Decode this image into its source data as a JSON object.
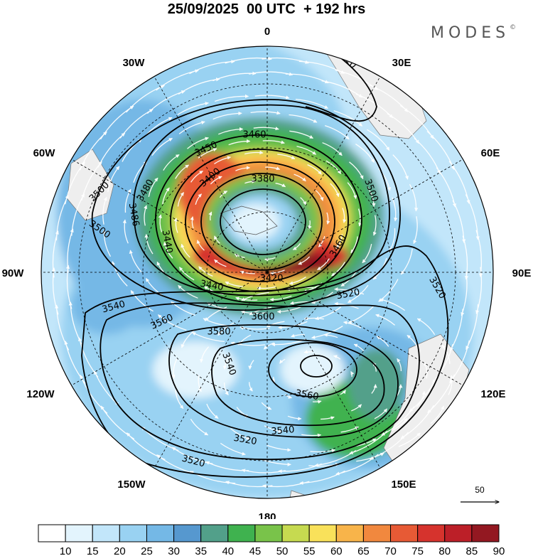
{
  "header": {
    "title": "25/09/2025  00 UTC  + 192 hrs",
    "brand": "MODES",
    "brand_mark": "©"
  },
  "map": {
    "projection": "south-polar-stereographic",
    "longitude_labels": [
      "0",
      "30E",
      "60E",
      "90E",
      "120E",
      "150E",
      "180",
      "150W",
      "120W",
      "90W",
      "60W",
      "30W"
    ],
    "height_contour_labels": [
      "3520",
      "3460",
      "3450",
      "3380",
      "3400",
      "3500",
      "3480",
      "3500",
      "3486",
      "3440",
      "3420",
      "3440",
      "3460",
      "3500",
      "3520",
      "3520",
      "3540",
      "3560",
      "3580",
      "3540",
      "3600",
      "3560",
      "3540",
      "3520",
      "3520"
    ],
    "wind_reference_value": "50",
    "land_color": "#f0f0f0"
  },
  "colorbar": {
    "tick_labels": [
      "10",
      "15",
      "20",
      "25",
      "30",
      "35",
      "40",
      "45",
      "50",
      "55",
      "60",
      "65",
      "70",
      "75",
      "80",
      "85",
      "90"
    ],
    "colors": [
      "#ffffff",
      "#e3f4fd",
      "#c2e6fa",
      "#99d2f2",
      "#74b8e6",
      "#5698cf",
      "#52a08a",
      "#3fb24f",
      "#79c34a",
      "#c6da50",
      "#f9e15a",
      "#f8b44a",
      "#f1883e",
      "#e75a35",
      "#d6332d",
      "#bc1f28",
      "#931821"
    ]
  }
}
